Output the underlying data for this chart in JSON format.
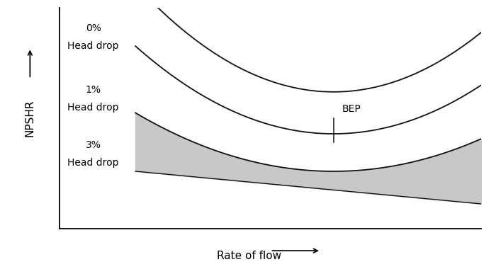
{
  "background_color": "#ffffff",
  "curve_color": "#111111",
  "fill_color": "#c8c8c8",
  "xlabel": "Rate of flow",
  "ylabel": "NPSHR",
  "label_0pct_line1": "0%",
  "label_0pct_line2": "Head drop",
  "label_1pct_line1": "1%",
  "label_1pct_line2": "Head drop",
  "label_3pct_line1": "3%",
  "label_3pct_line2": "Head drop",
  "bep_label": "BEP",
  "xlim": [
    0,
    1
  ],
  "ylim": [
    0,
    1
  ],
  "figsize": [
    7.0,
    3.8
  ],
  "dpi": 100
}
